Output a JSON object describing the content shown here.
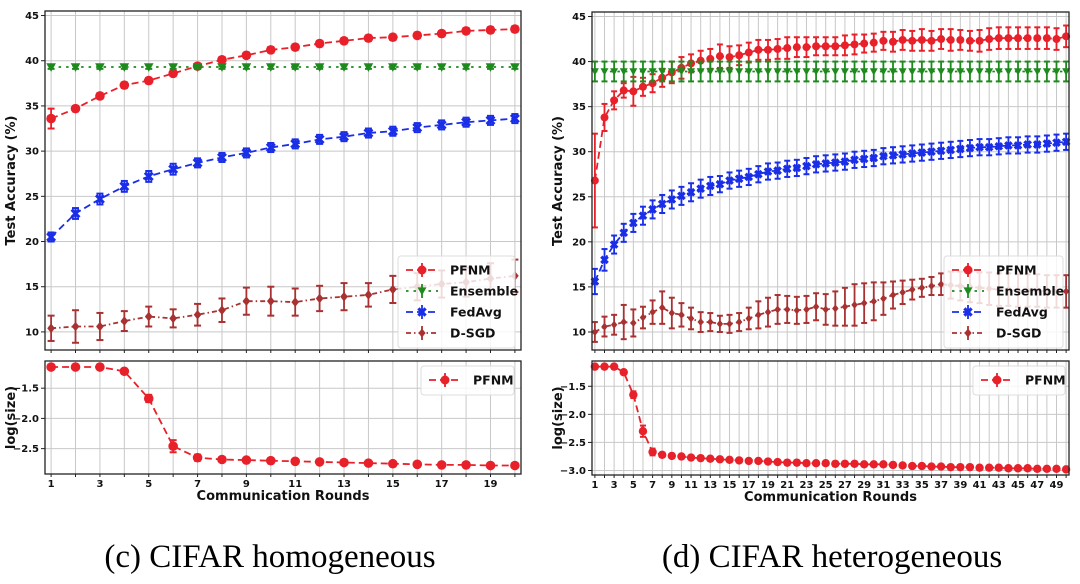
{
  "chart_data": [
    {
      "id": "c",
      "caption": "(c) CIFAR homogeneous",
      "type": "line",
      "x": [
        1,
        2,
        3,
        4,
        5,
        6,
        7,
        8,
        9,
        10,
        11,
        12,
        13,
        14,
        15,
        16,
        17,
        18,
        19,
        20
      ],
      "xlabel": "Communication Rounds",
      "xticks": [
        1,
        3,
        5,
        7,
        9,
        11,
        13,
        15,
        17,
        19
      ],
      "top": {
        "ylabel": "Test Accuracy (%)",
        "ylim": [
          8,
          45.5
        ],
        "yticks": [
          10,
          15,
          20,
          25,
          30,
          35,
          40,
          45
        ],
        "grid": true,
        "legend": "bottom-right",
        "series": [
          {
            "name": "PFNM",
            "color": "#e8202a",
            "marker": "circle",
            "dash": "dashed",
            "values": [
              33.6,
              34.7,
              36.1,
              37.3,
              37.8,
              38.6,
              39.4,
              40.1,
              40.6,
              41.2,
              41.5,
              41.9,
              42.2,
              42.5,
              42.6,
              42.8,
              43.0,
              43.3,
              43.4,
              43.5
            ],
            "err": [
              1.1,
              0.3,
              0.3,
              0.3,
              0.3,
              0.3,
              0.3,
              0.3,
              0.3,
              0.3,
              0.3,
              0.3,
              0.3,
              0.3,
              0.3,
              0.3,
              0.3,
              0.3,
              0.3,
              0.3
            ]
          },
          {
            "name": "Ensemble",
            "color": "#1e8a1e",
            "marker": "triangle-down",
            "dash": "dotted",
            "values": [
              39.3,
              39.3,
              39.3,
              39.3,
              39.3,
              39.3,
              39.3,
              39.3,
              39.3,
              39.3,
              39.3,
              39.3,
              39.3,
              39.3,
              39.3,
              39.3,
              39.3,
              39.3,
              39.3,
              39.3
            ],
            "err": [
              0.2,
              0.2,
              0.2,
              0.2,
              0.2,
              0.2,
              0.2,
              0.2,
              0.2,
              0.2,
              0.2,
              0.2,
              0.2,
              0.2,
              0.2,
              0.2,
              0.2,
              0.2,
              0.2,
              0.2
            ]
          },
          {
            "name": "FedAvg",
            "color": "#1a2ee8",
            "marker": "x-filled",
            "dash": "dashed",
            "values": [
              20.5,
              23.1,
              24.7,
              26.1,
              27.2,
              28.0,
              28.7,
              29.3,
              29.8,
              30.4,
              30.8,
              31.3,
              31.6,
              32.0,
              32.2,
              32.6,
              32.9,
              33.2,
              33.4,
              33.6
            ],
            "err": [
              0.5,
              0.6,
              0.6,
              0.6,
              0.6,
              0.6,
              0.5,
              0.5,
              0.5,
              0.5,
              0.5,
              0.5,
              0.5,
              0.5,
              0.5,
              0.5,
              0.5,
              0.5,
              0.5,
              0.5
            ]
          },
          {
            "name": "D-SGD",
            "color": "#a83232",
            "marker": "diamond",
            "dash": "dashdot",
            "values": [
              10.4,
              10.6,
              10.6,
              11.2,
              11.7,
              11.5,
              11.9,
              12.4,
              13.4,
              13.4,
              13.3,
              13.7,
              13.9,
              14.1,
              14.7,
              15.0,
              15.3,
              15.5,
              15.9,
              16.2
            ],
            "err": [
              1.4,
              1.8,
              1.5,
              1.1,
              1.1,
              1.0,
              1.2,
              1.3,
              1.5,
              1.6,
              1.5,
              1.4,
              1.5,
              1.3,
              1.5,
              1.5,
              1.5,
              1.6,
              1.7,
              1.8
            ]
          }
        ]
      },
      "bottom": {
        "ylabel": "log(size)",
        "ylim": [
          -2.92,
          -1.05
        ],
        "yticks": [
          -1.5,
          -2.0,
          -2.5
        ],
        "ytick_labels": [
          "−1.5",
          "−2.0",
          "−2.5"
        ],
        "grid": true,
        "legend": "top-right",
        "series": [
          {
            "name": "PFNM",
            "color": "#e8202a",
            "marker": "circle",
            "dash": "dashed",
            "values": [
              -1.15,
              -1.15,
              -1.15,
              -1.22,
              -1.67,
              -2.46,
              -2.65,
              -2.68,
              -2.69,
              -2.7,
              -2.71,
              -2.72,
              -2.73,
              -2.74,
              -2.75,
              -2.76,
              -2.77,
              -2.77,
              -2.78,
              -2.78
            ],
            "err": [
              0.01,
              0.01,
              0.01,
              0.02,
              0.06,
              0.1,
              0.05,
              0.03,
              0.03,
              0.03,
              0.03,
              0.03,
              0.03,
              0.03,
              0.03,
              0.03,
              0.03,
              0.03,
              0.03,
              0.03
            ]
          }
        ]
      }
    },
    {
      "id": "d",
      "caption": "(d) CIFAR heterogeneous",
      "type": "line",
      "x": [
        1,
        2,
        3,
        4,
        5,
        6,
        7,
        8,
        9,
        10,
        11,
        12,
        13,
        14,
        15,
        16,
        17,
        18,
        19,
        20,
        21,
        22,
        23,
        24,
        25,
        26,
        27,
        28,
        29,
        30,
        31,
        32,
        33,
        34,
        35,
        36,
        37,
        38,
        39,
        40,
        41,
        42,
        43,
        44,
        45,
        46,
        47,
        48,
        49,
        50
      ],
      "xlabel": "Communication Rounds",
      "xticks": [
        1,
        3,
        5,
        7,
        9,
        11,
        13,
        15,
        17,
        19,
        21,
        23,
        25,
        27,
        29,
        31,
        33,
        35,
        37,
        39,
        41,
        43,
        45,
        47,
        49
      ],
      "top": {
        "ylabel": "Test Accuracy (%)",
        "ylim": [
          8,
          45.5
        ],
        "yticks": [
          10,
          15,
          20,
          25,
          30,
          35,
          40,
          45
        ],
        "grid": true,
        "legend": "bottom-right",
        "series": [
          {
            "name": "PFNM",
            "color": "#e8202a",
            "marker": "circle",
            "dash": "dashed",
            "values": [
              26.8,
              33.8,
              35.7,
              36.8,
              36.7,
              37.2,
              37.6,
              38.2,
              38.8,
              39.3,
              39.8,
              40.1,
              40.3,
              40.6,
              40.5,
              40.7,
              41.0,
              41.3,
              41.3,
              41.4,
              41.5,
              41.6,
              41.6,
              41.7,
              41.7,
              41.7,
              41.8,
              41.9,
              42.0,
              42.1,
              42.3,
              42.2,
              42.4,
              42.3,
              42.4,
              42.3,
              42.5,
              42.4,
              42.4,
              42.3,
              42.3,
              42.5,
              42.6,
              42.6,
              42.6,
              42.6,
              42.6,
              42.6,
              42.5,
              42.8
            ],
            "err": [
              5.2,
              1.5,
              1.0,
              0.8,
              1.6,
              1.0,
              1.0,
              1.0,
              1.2,
              1.2,
              1.0,
              1.1,
              1.1,
              1.3,
              1.2,
              1.1,
              1.1,
              1.1,
              1.1,
              1.1,
              1.2,
              1.1,
              1.1,
              1.0,
              1.0,
              1.0,
              1.1,
              1.1,
              1.0,
              1.0,
              1.0,
              1.1,
              1.1,
              1.1,
              1.2,
              1.1,
              1.1,
              1.2,
              1.1,
              1.1,
              1.2,
              1.2,
              1.2,
              1.2,
              1.2,
              1.2,
              1.2,
              1.2,
              1.2,
              1.2
            ]
          },
          {
            "name": "Ensemble",
            "color": "#1e8a1e",
            "marker": "triangle-down",
            "dash": "dotted",
            "values": [
              38.9,
              38.9,
              38.9,
              38.9,
              38.9,
              38.9,
              38.9,
              38.9,
              38.9,
              38.9,
              38.9,
              38.9,
              38.9,
              38.9,
              38.9,
              38.9,
              38.9,
              38.9,
              38.9,
              38.9,
              38.9,
              38.9,
              38.9,
              38.9,
              38.9,
              38.9,
              38.9,
              38.9,
              38.9,
              38.9,
              38.9,
              38.9,
              38.9,
              38.9,
              38.9,
              38.9,
              38.9,
              38.9,
              38.9,
              38.9,
              38.9,
              38.9,
              38.9,
              38.9,
              38.9,
              38.9,
              38.9,
              38.9,
              38.9,
              38.9
            ],
            "err": [
              1.1,
              1.1,
              1.1,
              1.1,
              1.1,
              1.1,
              1.1,
              1.1,
              1.1,
              1.1,
              1.1,
              1.1,
              1.1,
              1.1,
              1.1,
              1.1,
              1.1,
              1.1,
              1.1,
              1.1,
              1.1,
              1.1,
              1.1,
              1.1,
              1.1,
              1.1,
              1.1,
              1.1,
              1.1,
              1.1,
              1.1,
              1.1,
              1.1,
              1.1,
              1.1,
              1.1,
              1.1,
              1.1,
              1.1,
              1.1,
              1.1,
              1.1,
              1.1,
              1.1,
              1.1,
              1.1,
              1.1,
              1.1,
              1.1,
              1.1
            ]
          },
          {
            "name": "FedAvg",
            "color": "#1a2ee8",
            "marker": "x-filled",
            "dash": "dashed",
            "values": [
              15.6,
              18.0,
              19.7,
              21.0,
              22.1,
              22.9,
              23.6,
              24.2,
              24.7,
              25.1,
              25.5,
              25.9,
              26.2,
              26.4,
              26.8,
              27.0,
              27.2,
              27.5,
              27.8,
              27.9,
              28.1,
              28.2,
              28.4,
              28.6,
              28.7,
              28.8,
              28.9,
              29.1,
              29.2,
              29.3,
              29.5,
              29.6,
              29.7,
              29.8,
              29.9,
              30.0,
              30.1,
              30.2,
              30.3,
              30.4,
              30.5,
              30.5,
              30.6,
              30.7,
              30.7,
              30.8,
              30.8,
              30.9,
              31.0,
              31.1
            ],
            "err": [
              1.4,
              1.2,
              1.0,
              1.0,
              1.0,
              1.0,
              1.0,
              1.0,
              1.0,
              1.0,
              1.0,
              1.0,
              1.0,
              0.9,
              0.9,
              0.9,
              0.9,
              0.9,
              0.9,
              0.9,
              0.9,
              0.9,
              0.9,
              0.9,
              0.9,
              0.9,
              0.9,
              0.9,
              0.9,
              0.9,
              0.9,
              0.9,
              0.9,
              0.9,
              0.9,
              0.9,
              0.9,
              0.9,
              0.9,
              0.9,
              0.9,
              0.9,
              0.9,
              0.9,
              0.9,
              0.9,
              0.9,
              0.9,
              0.9,
              0.9
            ]
          },
          {
            "name": "D-SGD",
            "color": "#a83232",
            "marker": "diamond",
            "dash": "dashdot",
            "values": [
              10.0,
              10.6,
              10.8,
              11.1,
              11.0,
              11.6,
              12.2,
              12.7,
              12.1,
              11.9,
              11.5,
              11.1,
              11.1,
              10.9,
              10.9,
              11.1,
              11.5,
              11.9,
              12.2,
              12.5,
              12.5,
              12.4,
              12.5,
              12.8,
              12.5,
              12.6,
              12.8,
              13.0,
              13.2,
              13.4,
              13.7,
              14.1,
              14.4,
              14.7,
              14.9,
              15.1,
              15.3,
              15.2,
              15.1,
              15.0,
              14.9,
              14.8,
              14.7,
              14.7,
              14.6,
              14.6,
              14.6,
              14.5,
              14.5,
              14.5
            ],
            "err": [
              1.1,
              1.1,
              1.1,
              1.9,
              1.5,
              1.2,
              1.3,
              1.8,
              1.7,
              1.3,
              1.2,
              1.1,
              1.0,
              0.9,
              1.0,
              1.0,
              1.2,
              1.5,
              1.6,
              1.6,
              1.5,
              1.5,
              1.5,
              1.5,
              1.7,
              1.9,
              2.1,
              2.3,
              2.2,
              2.1,
              1.8,
              1.5,
              1.3,
              1.1,
              1.0,
              1.0,
              1.2,
              1.5,
              1.6,
              1.7,
              1.7,
              1.8,
              1.8,
              1.8,
              1.8,
              1.8,
              1.8,
              1.8,
              1.8,
              1.8
            ]
          }
        ]
      },
      "bottom": {
        "ylabel": "log(size)",
        "ylim": [
          -3.08,
          -1.05
        ],
        "yticks": [
          -1.5,
          -2.0,
          -2.5,
          -3.0
        ],
        "ytick_labels": [
          "−1.5",
          "−2.0",
          "−2.5",
          "−3.0"
        ],
        "grid": true,
        "legend": "top-right",
        "series": [
          {
            "name": "PFNM",
            "color": "#e8202a",
            "marker": "circle",
            "dash": "dashed",
            "values": [
              -1.15,
              -1.15,
              -1.15,
              -1.25,
              -1.65,
              -2.3,
              -2.67,
              -2.72,
              -2.74,
              -2.75,
              -2.77,
              -2.78,
              -2.79,
              -2.8,
              -2.81,
              -2.82,
              -2.83,
              -2.83,
              -2.84,
              -2.85,
              -2.86,
              -2.86,
              -2.87,
              -2.87,
              -2.87,
              -2.88,
              -2.88,
              -2.88,
              -2.89,
              -2.89,
              -2.89,
              -2.9,
              -2.91,
              -2.92,
              -2.92,
              -2.93,
              -2.93,
              -2.94,
              -2.94,
              -2.94,
              -2.95,
              -2.95,
              -2.95,
              -2.96,
              -2.96,
              -2.96,
              -2.97,
              -2.97,
              -2.97,
              -2.98
            ],
            "err": [
              0.01,
              0.01,
              0.01,
              0.03,
              0.06,
              0.1,
              0.06,
              0.04,
              0.03,
              0.03,
              0.03,
              0.02,
              0.02,
              0.02,
              0.02,
              0.02,
              0.02,
              0.02,
              0.02,
              0.02,
              0.02,
              0.02,
              0.02,
              0.02,
              0.02,
              0.02,
              0.02,
              0.02,
              0.02,
              0.02,
              0.02,
              0.02,
              0.02,
              0.02,
              0.02,
              0.02,
              0.02,
              0.02,
              0.02,
              0.02,
              0.02,
              0.02,
              0.02,
              0.02,
              0.02,
              0.02,
              0.02,
              0.02,
              0.02,
              0.02
            ]
          }
        ]
      }
    }
  ]
}
